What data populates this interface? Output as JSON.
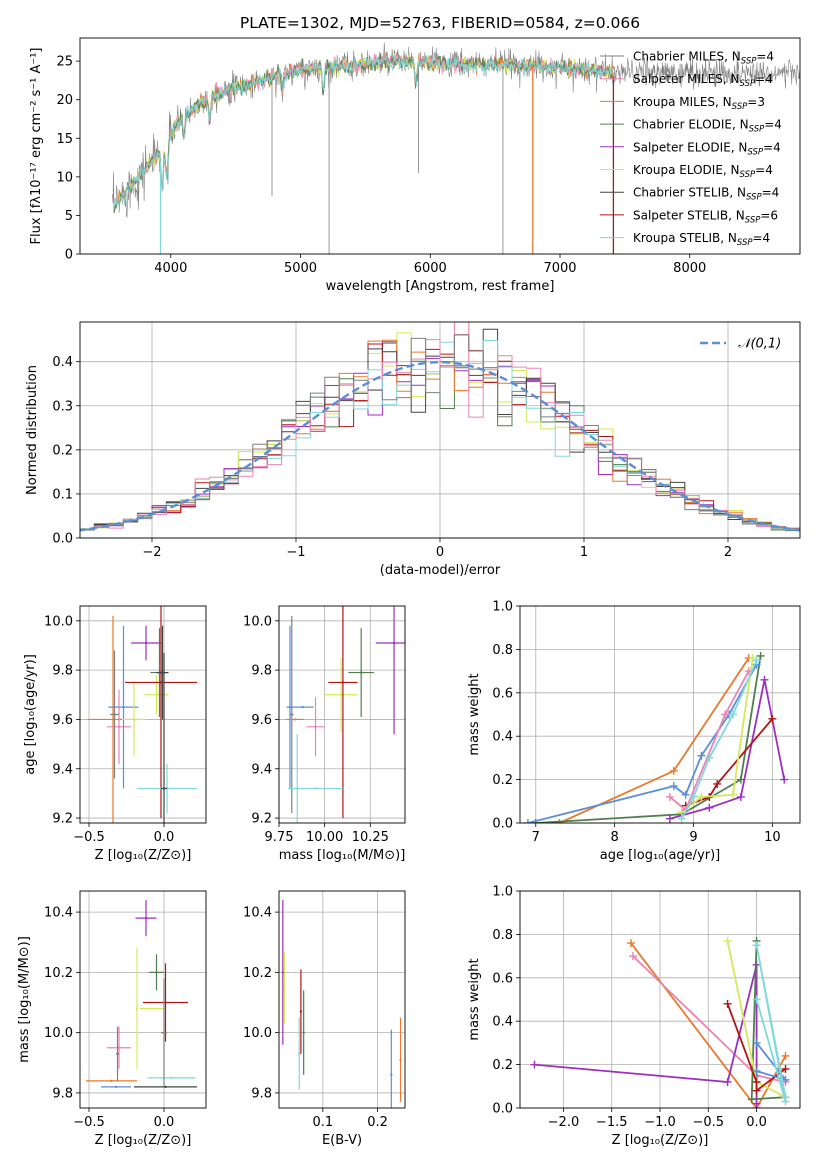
{
  "title": "PLATE=1302, MJD=52763, FIBERID=0584, z=0.066",
  "colors": {
    "Chabrier MILES": "#808080",
    "Salpeter MILES": "#ee82b4",
    "Kroupa MILES": "#e8792b",
    "Chabrier ELODIE": "#4f7f4f",
    "Salpeter ELODIE": "#9b30c0",
    "Kroupa ELODIE": "#d4e85a",
    "Chabrier STELIB": "#444444",
    "Salpeter STELIB": "#b01515",
    "Kroupa STELIB": "#7fd8dc",
    "gaussian": "#5a8fd8",
    "blue_extra": "#5a8fd8",
    "grid": "#b0b0b0"
  },
  "chart_data": [
    {
      "panel": "spectrum",
      "type": "line",
      "title": "PLATE=1302, MJD=52763, FIBERID=0584, z=0.066",
      "xlabel": "wavelength [Angstrom, rest frame]",
      "ylabel": "Flux [fλ10⁻¹⁷ erg cm⁻² s⁻¹ A⁻¹]",
      "xlim": [
        3300,
        8850
      ],
      "ylim": [
        0,
        28
      ],
      "xticks": [
        4000,
        5000,
        6000,
        7000,
        8000
      ],
      "yticks": [
        0,
        5,
        10,
        15,
        20,
        25
      ],
      "legend_position": "right",
      "legend": [
        {
          "name": "Chabrier MILES",
          "label": "Chabrier MILES, N",
          "n": "4"
        },
        {
          "name": "Salpeter MILES",
          "label": "Salpeter MILES, N",
          "n": "4"
        },
        {
          "name": "Kroupa MILES",
          "label": "Kroupa MILES, N",
          "n": "3"
        },
        {
          "name": "Chabrier ELODIE",
          "label": "Chabrier ELODIE, N",
          "n": "4"
        },
        {
          "name": "Salpeter ELODIE",
          "label": "Salpeter ELODIE, N",
          "n": "4"
        },
        {
          "name": "Kroupa ELODIE",
          "label": "Kroupa ELODIE, N",
          "n": "4"
        },
        {
          "name": "Chabrier STELIB",
          "label": "Chabrier STELIB, N",
          "n": "4"
        },
        {
          "name": "Salpeter STELIB",
          "label": "Salpeter STELIB, N",
          "n": "6"
        },
        {
          "name": "Kroupa STELIB",
          "label": "Kroupa STELIB, N",
          "n": "4"
        }
      ],
      "continuum": {
        "x": [
          3550,
          3650,
          3750,
          3850,
          3950,
          4050,
          4150,
          4300,
          4500,
          4700,
          4900,
          5100,
          5400,
          5700,
          6000,
          6300,
          6600,
          6900,
          7200,
          7400
        ],
        "y": [
          6,
          8,
          10,
          12,
          13.5,
          17,
          18.5,
          20.5,
          21.5,
          22.5,
          23.5,
          24,
          24.5,
          25,
          24.8,
          24.5,
          24.6,
          24.2,
          24,
          23.5
        ]
      },
      "data_xrange": [
        3550,
        8850
      ]
    },
    {
      "panel": "residuals",
      "type": "line",
      "xlabel": "(data-model)/error",
      "ylabel": "Normed distribution",
      "xlim": [
        -2.5,
        2.5
      ],
      "ylim": [
        0,
        0.49
      ],
      "xticks": [
        -2,
        -1,
        0,
        1,
        2
      ],
      "yticks": [
        0.0,
        0.1,
        0.2,
        0.3,
        0.4
      ],
      "legend": [
        {
          "name": "gaussian",
          "label": "𝒩(0,1)"
        }
      ],
      "legend_position": "top-right",
      "gaussian": {
        "mu": 0,
        "sigma": 1
      }
    },
    {
      "panel": "age_vs_Z",
      "type": "scatter",
      "xlabel": "Z [log₁₀(Z/Z⊙)]",
      "ylabel": "age  [log₁₀(age/yr)]",
      "xlim": [
        -0.56,
        0.28
      ],
      "ylim": [
        9.18,
        10.06
      ],
      "xticks": [
        -0.5,
        0.0
      ],
      "yticks": [
        9.2,
        9.4,
        9.6,
        9.8,
        10.0
      ],
      "points": [
        {
          "series": "Kroupa MILES",
          "x": -0.34,
          "xerr": 0.17,
          "y": 9.6,
          "yerr": 0.42
        },
        {
          "series": "Salpeter MILES",
          "x": -0.3,
          "xerr": 0.08,
          "y": 9.57,
          "yerr": 0.15
        },
        {
          "series": "blue_extra",
          "x": -0.27,
          "xerr": 0.1,
          "y": 9.65,
          "yerr": 0.33
        },
        {
          "series": "Chabrier MILES",
          "x": -0.33,
          "xerr": 0.03,
          "y": 9.62,
          "yerr": 0.26
        },
        {
          "series": "Kroupa ELODIE",
          "x": -0.2,
          "xerr": 0.08,
          "y": 9.6,
          "yerr": 0.15
        },
        {
          "series": "Salpeter ELODIE",
          "x": -0.12,
          "xerr": 0.1,
          "y": 9.91,
          "yerr": 0.07
        },
        {
          "series": "Kroupa ELODIE",
          "x": -0.05,
          "xerr": 0.08,
          "y": 9.7,
          "yerr": 0.08
        },
        {
          "series": "Chabrier ELODIE",
          "x": -0.03,
          "xerr": 0.06,
          "y": 9.79,
          "yerr": 0.18
        },
        {
          "series": "Salpeter STELIB",
          "x": -0.02,
          "xerr": 0.24,
          "y": 9.75,
          "yerr": 0.55
        },
        {
          "series": "Chabrier STELIB",
          "x": -0.01,
          "xerr": 0.04,
          "y": 9.79,
          "yerr": 0.19
        },
        {
          "series": "Kroupa STELIB",
          "x": 0.02,
          "xerr": 0.2,
          "y": 9.32,
          "yerr": 0.1
        },
        {
          "series": "Chabrier STELIB",
          "x": 0.0,
          "xerr": 0.02,
          "y": 9.32,
          "yerr": 0.55
        }
      ]
    },
    {
      "panel": "age_vs_mass",
      "type": "scatter",
      "xlabel": "mass [log₁₀(M/M⊙)]",
      "xlim": [
        9.75,
        10.44
      ],
      "ylim": [
        9.18,
        10.06
      ],
      "xticks": [
        9.75,
        10.0,
        10.25
      ],
      "yticks": [
        9.2,
        9.4,
        9.6,
        9.8,
        10.0
      ],
      "points": [
        {
          "series": "Chabrier MILES",
          "x": 9.82,
          "xerr": 0.01,
          "y": 9.62,
          "yerr": 0.4
        },
        {
          "series": "blue_extra",
          "x": 9.81,
          "xerr": 0.02,
          "y": 9.65,
          "yerr": 0.33
        },
        {
          "series": "blue_extra",
          "x": 9.88,
          "xerr": 0.06,
          "y": 9.65,
          "yerr": 0.0
        },
        {
          "series": "Kroupa MILES",
          "x": 9.84,
          "xerr": 0.05,
          "y": 9.6,
          "yerr": 0.0
        },
        {
          "series": "Kroupa STELIB",
          "x": 9.85,
          "xerr": 0.0,
          "y": 9.32,
          "yerr": 0.22
        },
        {
          "series": "Salpeter MILES",
          "x": 9.95,
          "xerr": 0.05,
          "y": 9.57,
          "yerr": 0.12
        },
        {
          "series": "Kroupa ELODIE",
          "x": 10.09,
          "xerr": 0.09,
          "y": 9.7,
          "yerr": 0.15
        },
        {
          "series": "Chabrier ELODIE",
          "x": 10.2,
          "xerr": 0.07,
          "y": 9.79,
          "yerr": 0.18
        },
        {
          "series": "Salpeter STELIB",
          "x": 10.1,
          "xerr": 0.08,
          "y": 9.75,
          "yerr": 0.55
        },
        {
          "series": "Salpeter ELODIE",
          "x": 10.38,
          "xerr": 0.1,
          "y": 9.91,
          "yerr": 0.37
        },
        {
          "series": "Kroupa STELIB",
          "x": 9.95,
          "xerr": 0.15,
          "y": 9.32,
          "yerr": 0.0
        }
      ]
    },
    {
      "panel": "massweight_vs_age",
      "type": "line",
      "xlabel": "age  [log₁₀(age/yr)]",
      "ylabel": "mass weight",
      "xlim": [
        6.8,
        10.35
      ],
      "ylim": [
        0,
        1.0
      ],
      "xticks": [
        7,
        8,
        9,
        10
      ],
      "yticks": [
        0.0,
        0.2,
        0.4,
        0.6,
        0.8,
        1.0
      ],
      "series": [
        {
          "name": "Kroupa MILES",
          "x": [
            7.3,
            8.75,
            9.7
          ],
          "y": [
            0.0,
            0.24,
            0.76
          ]
        },
        {
          "name": "Chabrier ELODIE",
          "x": [
            7.0,
            8.85,
            9.6,
            9.85
          ],
          "y": [
            0.0,
            0.04,
            0.2,
            0.77
          ]
        },
        {
          "name": "blue_extra",
          "x": [
            6.9,
            8.75,
            8.9,
            9.1,
            9.45,
            9.8
          ],
          "y": [
            0.0,
            0.17,
            0.13,
            0.31,
            0.5,
            0.73
          ]
        },
        {
          "name": "Salpeter ELODIE",
          "x": [
            8.7,
            9.2,
            9.6,
            9.9,
            10.15
          ],
          "y": [
            0.02,
            0.07,
            0.12,
            0.66,
            0.2
          ]
        },
        {
          "name": "Salpeter STELIB",
          "x": [
            8.9,
            9.2,
            9.3,
            10.0
          ],
          "y": [
            0.08,
            0.12,
            0.18,
            0.48
          ]
        },
        {
          "name": "Kroupa ELODIE",
          "x": [
            8.85,
            9.1,
            9.5,
            9.75
          ],
          "y": [
            0.05,
            0.12,
            0.13,
            0.76
          ]
        },
        {
          "name": "Salpeter MILES",
          "x": [
            8.7,
            8.9,
            9.4,
            9.7
          ],
          "y": [
            0.12,
            0.06,
            0.5,
            0.7
          ]
        },
        {
          "name": "Kroupa STELIB",
          "x": [
            8.85,
            9.0,
            9.2,
            9.5,
            9.8
          ],
          "y": [
            0.02,
            0.12,
            0.3,
            0.5,
            0.75
          ]
        }
      ]
    },
    {
      "panel": "mass_vs_Z",
      "type": "scatter",
      "xlabel": "Z [log₁₀(Z/Z⊙)]",
      "ylabel": "mass [log₁₀(M/M⊙)]",
      "xlim": [
        -0.56,
        0.28
      ],
      "ylim": [
        9.75,
        10.47
      ],
      "xticks": [
        -0.5,
        0.0
      ],
      "yticks": [
        9.8,
        10.0,
        10.2,
        10.4
      ],
      "points": [
        {
          "series": "Kroupa MILES",
          "x": -0.35,
          "xerr": 0.17,
          "y": 9.84,
          "yerr": 0.0
        },
        {
          "series": "blue_extra",
          "x": -0.32,
          "xerr": 0.1,
          "y": 9.82,
          "yerr": 0.0
        },
        {
          "series": "Salpeter MILES",
          "x": -0.3,
          "xerr": 0.08,
          "y": 9.95,
          "yerr": 0.07
        },
        {
          "series": "Chabrier MILES",
          "x": -0.31,
          "xerr": 0.01,
          "y": 9.93,
          "yerr": 0.09
        },
        {
          "series": "Kroupa ELODIE",
          "x": -0.18,
          "xerr": 0.0,
          "y": 10.08,
          "yerr": 0.2
        },
        {
          "series": "Kroupa ELODIE",
          "x": -0.08,
          "xerr": 0.08,
          "y": 10.08,
          "yerr": 0.0
        },
        {
          "series": "Salpeter ELODIE",
          "x": -0.12,
          "xerr": 0.07,
          "y": 10.38,
          "yerr": 0.06
        },
        {
          "series": "Chabrier ELODIE",
          "x": -0.05,
          "xerr": 0.05,
          "y": 10.2,
          "yerr": 0.06
        },
        {
          "series": "Salpeter STELIB",
          "x": 0.01,
          "xerr": 0.15,
          "y": 10.1,
          "yerr": 0.13
        },
        {
          "series": "Chabrier STELIB",
          "x": 0.01,
          "xerr": 0.21,
          "y": 9.82,
          "yerr": 0.0
        },
        {
          "series": "Kroupa STELIB",
          "x": 0.05,
          "xerr": 0.16,
          "y": 9.85,
          "yerr": 0.0
        },
        {
          "series": "Chabrier MILES",
          "x": 0.0,
          "xerr": 0.02,
          "y": 10.0,
          "yerr": 0.18
        }
      ]
    },
    {
      "panel": "mass_vs_EBV",
      "type": "scatter",
      "xlabel": "E(B-V)",
      "xlim": [
        0.02,
        0.25
      ],
      "ylim": [
        9.75,
        10.47
      ],
      "xticks": [
        0.1,
        0.2
      ],
      "yticks": [
        9.8,
        10.0,
        10.2,
        10.4
      ],
      "points": [
        {
          "series": "Salpeter ELODIE",
          "x": 0.027,
          "y": 10.2,
          "yerr": 0.24
        },
        {
          "series": "Kroupa ELODIE",
          "x": 0.03,
          "y": 10.15,
          "yerr": 0.12
        },
        {
          "series": "Kroupa STELIB",
          "x": 0.057,
          "y": 9.93,
          "yerr": 0.12
        },
        {
          "series": "Salpeter STELIB",
          "x": 0.06,
          "y": 10.07,
          "yerr": 0.14
        },
        {
          "series": "Chabrier ELODIE",
          "x": 0.065,
          "y": 10.0,
          "yerr": 0.14
        },
        {
          "series": "blue_extra",
          "x": 0.225,
          "y": 9.86,
          "yerr": 0.15
        },
        {
          "series": "Kroupa MILES",
          "x": 0.242,
          "y": 9.91,
          "yerr": 0.14
        }
      ]
    },
    {
      "panel": "massweight_vs_Z",
      "type": "line",
      "xlabel": "Z [log₁₀(Z/Z⊙)]",
      "ylabel": "mass weight",
      "xlim": [
        -2.45,
        0.45
      ],
      "ylim": [
        0,
        1.0
      ],
      "xticks": [
        -2.0,
        -1.5,
        -1.0,
        -0.5,
        0.0
      ],
      "yticks": [
        0.0,
        0.2,
        0.4,
        0.6,
        0.8,
        1.0
      ],
      "series": [
        {
          "name": "Kroupa MILES",
          "x": [
            -1.3,
            0.0,
            0.3
          ],
          "y": [
            0.76,
            0.0,
            0.24
          ]
        },
        {
          "name": "Salpeter MILES",
          "x": [
            -1.28,
            0.0,
            0.3
          ],
          "y": [
            0.7,
            0.15,
            0.12
          ]
        },
        {
          "name": "Salpeter ELODIE",
          "x": [
            -2.3,
            -0.3,
            0.0,
            0.0
          ],
          "y": [
            0.2,
            0.12,
            0.66,
            0.02
          ]
        },
        {
          "name": "Chabrier ELODIE",
          "x": [
            0.0,
            -0.05,
            0.3
          ],
          "y": [
            0.77,
            0.04,
            0.05
          ]
        },
        {
          "name": "Kroupa ELODIE",
          "x": [
            -0.3,
            0.0,
            0.3
          ],
          "y": [
            0.77,
            0.12,
            0.05
          ]
        },
        {
          "name": "Salpeter STELIB",
          "x": [
            -0.3,
            0.0,
            0.0,
            0.3
          ],
          "y": [
            0.48,
            0.12,
            0.08,
            0.18
          ]
        },
        {
          "name": "blue_extra",
          "x": [
            0.0,
            0.3,
            0.0
          ],
          "y": [
            0.17,
            0.13,
            0.3
          ]
        },
        {
          "name": "Kroupa STELIB",
          "x": [
            0.0,
            0.3,
            0.0,
            0.3
          ],
          "y": [
            0.5,
            0.03,
            0.75,
            0.05
          ]
        }
      ]
    }
  ]
}
